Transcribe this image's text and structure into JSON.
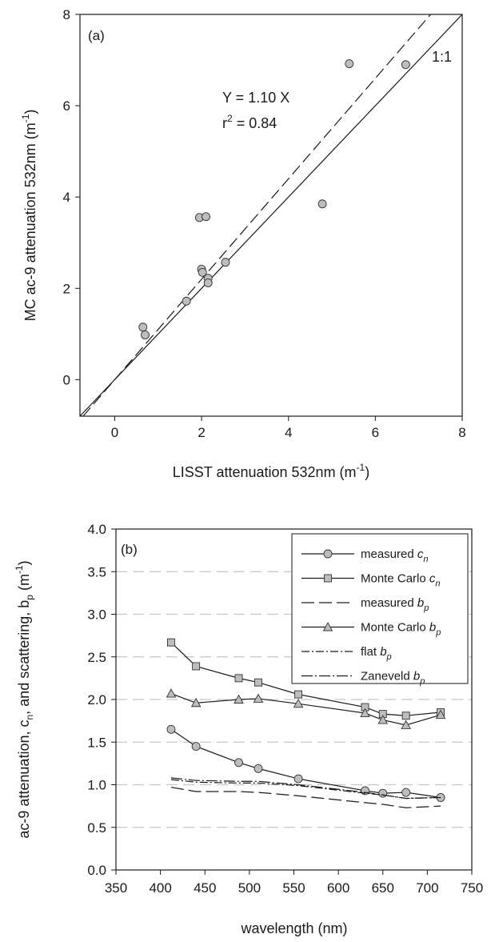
{
  "chart_data": [
    {
      "panel": "(a)",
      "type": "scatter",
      "xlabel": "LISST attenuation 532nm (m",
      "xlabel_sup": "-1",
      "xlabel_end": ")",
      "ylabel": "MC ac-9 attenuation 532nm (m",
      "ylabel_sup": "-1",
      "ylabel_end": ")",
      "xlim": [
        -0.8,
        8
      ],
      "ylim": [
        -0.8,
        8
      ],
      "xticks": [
        0,
        2,
        4,
        6,
        8
      ],
      "yticks": [
        0,
        2,
        4,
        6,
        8
      ],
      "points": [
        {
          "x": 0.65,
          "y": 1.15
        },
        {
          "x": 0.7,
          "y": 0.98
        },
        {
          "x": 1.65,
          "y": 1.72
        },
        {
          "x": 1.95,
          "y": 3.55
        },
        {
          "x": 2.1,
          "y": 3.57
        },
        {
          "x": 2.0,
          "y": 2.42
        },
        {
          "x": 2.02,
          "y": 2.35
        },
        {
          "x": 2.15,
          "y": 2.22
        },
        {
          "x": 2.15,
          "y": 2.12
        },
        {
          "x": 2.55,
          "y": 2.57
        },
        {
          "x": 4.78,
          "y": 3.85
        },
        {
          "x": 5.4,
          "y": 6.92
        },
        {
          "x": 6.7,
          "y": 6.9
        }
      ],
      "lines": [
        {
          "kind": "one-to-one",
          "slope": 1.0,
          "style": "solid"
        },
        {
          "kind": "regression",
          "slope": 1.1,
          "style": "dashed"
        }
      ],
      "annotations": {
        "equation": "Y = 1.10 X",
        "r2_prefix": "r",
        "r2_sup": "2",
        "r2_suffix": " = 0.84",
        "one_to_one": "1:1"
      },
      "point_color": "#bdbdbd"
    },
    {
      "panel": "(b)",
      "type": "line",
      "xlabel": "wavelength (nm)",
      "ylabel": "ac-9 attenuation, c",
      "ylabel_sub": "n",
      "ylabel_mid": ", and scattering, b",
      "ylabel_sub2": "p",
      "ylabel_end": " (m",
      "ylabel_sup": "-1",
      "ylabel_close": ")",
      "xlim": [
        350,
        750
      ],
      "ylim": [
        0,
        4
      ],
      "xticks": [
        350,
        400,
        450,
        500,
        550,
        600,
        650,
        700,
        750
      ],
      "yticks": [
        "0.0",
        "0.5",
        "1.0",
        "1.5",
        "2.0",
        "2.5",
        "3.0",
        "3.5",
        "4.0"
      ],
      "grid": "horizontal dashed",
      "legend_position": "top-right",
      "series": [
        {
          "name": "measured ",
          "sub_symbol": "c",
          "sub": "n",
          "marker": "circle",
          "dash": "",
          "x": [
            412,
            440,
            488,
            510,
            555,
            630,
            650,
            676,
            715
          ],
          "values": [
            1.65,
            1.45,
            1.26,
            1.19,
            1.07,
            0.93,
            0.9,
            0.91,
            0.85
          ]
        },
        {
          "name": "Monte Carlo ",
          "sub_symbol": "c",
          "sub": "n",
          "marker": "square",
          "dash": "",
          "x": [
            412,
            440,
            488,
            510,
            555,
            630,
            650,
            676,
            715
          ],
          "values": [
            2.67,
            2.39,
            2.25,
            2.2,
            2.06,
            1.91,
            1.83,
            1.81,
            1.85
          ]
        },
        {
          "name": "measured ",
          "sub_symbol": "b",
          "sub": "p",
          "marker": "none",
          "dash": "16 6",
          "x": [
            412,
            440,
            488,
            510,
            555,
            630,
            650,
            676,
            715
          ],
          "values": [
            0.97,
            0.92,
            0.92,
            0.91,
            0.87,
            0.79,
            0.77,
            0.73,
            0.75
          ]
        },
        {
          "name": "Monte Carlo ",
          "sub_symbol": "b",
          "sub": "p",
          "marker": "triangle",
          "dash": "",
          "x": [
            412,
            440,
            488,
            510,
            555,
            630,
            650,
            676,
            715
          ],
          "values": [
            2.07,
            1.96,
            2.0,
            2.01,
            1.95,
            1.84,
            1.76,
            1.7,
            1.82
          ]
        },
        {
          "name": "flat ",
          "sub_symbol": "b",
          "sub": "p",
          "marker": "none",
          "dash": "10 3 2 3",
          "x": [
            412,
            440,
            488,
            510,
            555,
            630,
            650,
            676,
            715
          ],
          "values": [
            1.06,
            1.03,
            1.02,
            1.02,
            0.99,
            0.9,
            0.88,
            0.84,
            0.85
          ]
        },
        {
          "name": "Zaneveld ",
          "sub_symbol": "b",
          "sub": "p",
          "marker": "none",
          "dash": "14 3 2 3",
          "x": [
            412,
            440,
            488,
            510,
            555,
            630,
            650,
            676,
            715
          ],
          "values": [
            1.08,
            1.05,
            1.04,
            1.04,
            1.0,
            0.91,
            0.88,
            0.84,
            0.85
          ]
        }
      ],
      "marker_color": "#bdbdbd",
      "grid_color": "#c8c8c8"
    }
  ]
}
